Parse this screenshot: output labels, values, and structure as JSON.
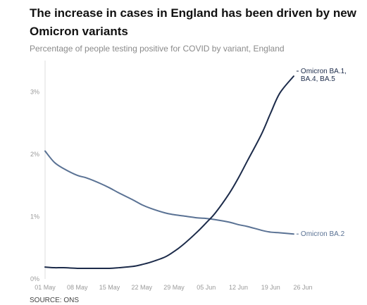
{
  "chart_data": {
    "type": "line",
    "title": "The increase in cases in England has been driven by new Omicron variants",
    "subtitle": "Percentage of people testing positive for COVID by variant, England",
    "source": "SOURCE: ONS",
    "xlabel": "",
    "ylabel": "",
    "x_ticks": [
      "01 May",
      "08 May",
      "15 May",
      "22 May",
      "29 May",
      "05 Jun",
      "12 Jun",
      "19 Jun",
      "26 Jun"
    ],
    "y_ticks": [
      "0%",
      "1%",
      "2%",
      "3%"
    ],
    "xlim": [
      "2022-05-01",
      "2022-06-26"
    ],
    "ylim": [
      0,
      3.5
    ],
    "grid": false,
    "legend": "direct labels at line ends",
    "x": [
      "2022-05-01",
      "2022-05-03",
      "2022-05-05",
      "2022-05-08",
      "2022-05-10",
      "2022-05-13",
      "2022-05-15",
      "2022-05-17",
      "2022-05-20",
      "2022-05-22",
      "2022-05-24",
      "2022-05-27",
      "2022-05-29",
      "2022-05-31",
      "2022-06-03",
      "2022-06-05",
      "2022-06-07",
      "2022-06-10",
      "2022-06-12",
      "2022-06-14",
      "2022-06-17",
      "2022-06-19",
      "2022-06-21",
      "2022-06-24"
    ],
    "series": [
      {
        "name": "Omicron BA.2",
        "color": "#5a7294",
        "values": [
          2.05,
          1.87,
          1.77,
          1.66,
          1.62,
          1.53,
          1.46,
          1.38,
          1.27,
          1.19,
          1.13,
          1.06,
          1.03,
          1.01,
          0.98,
          0.97,
          0.95,
          0.91,
          0.87,
          0.84,
          0.78,
          0.75,
          0.74,
          0.72
        ]
      },
      {
        "name": "Omicron BA.1, BA.4, BA.5",
        "color": "#1c2b4a",
        "values": [
          0.19,
          0.18,
          0.18,
          0.17,
          0.17,
          0.17,
          0.17,
          0.18,
          0.2,
          0.23,
          0.27,
          0.35,
          0.44,
          0.55,
          0.75,
          0.9,
          1.06,
          1.37,
          1.62,
          1.9,
          2.32,
          2.66,
          2.98,
          3.25
        ]
      }
    ]
  }
}
